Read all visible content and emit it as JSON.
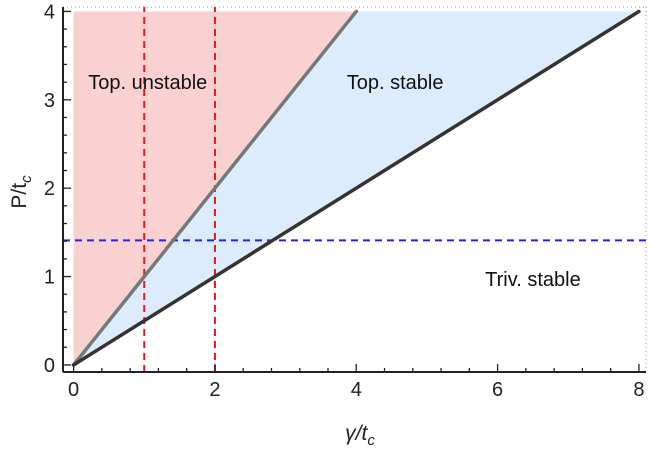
{
  "chart_data": {
    "type": "area",
    "title": "",
    "xlabel": {
      "main": "γ/t",
      "sub": "c"
    },
    "ylabel": {
      "main": "P/t",
      "sub": "c"
    },
    "xlim": [
      -0.15,
      8.1
    ],
    "ylim": [
      -0.08,
      4.05
    ],
    "xticks": [
      0,
      2,
      4,
      6,
      8
    ],
    "yticks": [
      0,
      1,
      2,
      3,
      4
    ],
    "grid": false,
    "regions": [
      {
        "name": "Top. unstable",
        "label": "Top. unstable",
        "color": "#f9d1d1",
        "label_at": [
          1.05,
          3.2
        ]
      },
      {
        "name": "Top. stable",
        "label": "Top. stable",
        "color": "#dcecfc",
        "label_at": [
          4.55,
          3.2
        ]
      },
      {
        "name": "Triv. stable",
        "label": "Triv. stable",
        "color": "#ffffff",
        "label_at": [
          6.5,
          0.97
        ]
      }
    ],
    "boundaries": [
      {
        "name": "P = γ",
        "slope": 1.0,
        "color": "#777777"
      },
      {
        "name": "P = γ/2",
        "slope": 0.5,
        "color": "#333333"
      }
    ],
    "reference_lines": [
      {
        "orientation": "vertical",
        "value": 1,
        "color": "#e8141b",
        "style": "dashed"
      },
      {
        "orientation": "vertical",
        "value": 2,
        "color": "#e8141b",
        "style": "dashed"
      },
      {
        "orientation": "horizontal",
        "value": 1.41,
        "color": "#2323e0",
        "style": "dashed"
      }
    ]
  }
}
